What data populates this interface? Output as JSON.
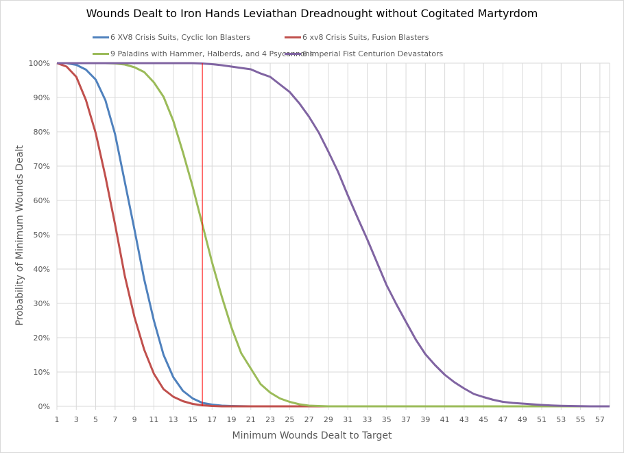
{
  "chart_data": {
    "type": "line",
    "title": "Wounds Dealt to Iron Hands Leviathan Dreadnought without Cogitated Martyrdom",
    "xlabel": "Minimum Wounds Dealt  to Target",
    "ylabel": "Probability of Minimum Wounds Dealt",
    "xlim": [
      1,
      58
    ],
    "ylim": [
      0,
      100
    ],
    "x_ticks": [
      1,
      3,
      5,
      7,
      9,
      11,
      13,
      15,
      17,
      19,
      21,
      23,
      25,
      27,
      29,
      31,
      33,
      35,
      37,
      39,
      41,
      43,
      45,
      47,
      49,
      51,
      53,
      55,
      57
    ],
    "y_ticks": [
      "0%",
      "10%",
      "20%",
      "30%",
      "40%",
      "50%",
      "60%",
      "70%",
      "80%",
      "90%",
      "100%"
    ],
    "grid": true,
    "legend_position": "top",
    "reference_line_x": 16,
    "reference_line_color": "#ff0000",
    "x": [
      1,
      2,
      3,
      4,
      5,
      6,
      7,
      8,
      9,
      10,
      11,
      12,
      13,
      14,
      15,
      16,
      17,
      18,
      19,
      20,
      21,
      22,
      23,
      24,
      25,
      26,
      27,
      28,
      29,
      30,
      31,
      32,
      33,
      34,
      35,
      36,
      37,
      38,
      39,
      40,
      41,
      42,
      43,
      44,
      45,
      46,
      47,
      48,
      49,
      50,
      51,
      52,
      53,
      54,
      55,
      56,
      57,
      58
    ],
    "series": [
      {
        "name": "6 XV8 Crisis Suits, Cyclic Ion Blasters",
        "color": "#4f81bd",
        "values": [
          100,
          100,
          99.5,
          98.1,
          95.2,
          89.2,
          79.3,
          65.4,
          51.5,
          37,
          25,
          15,
          8.5,
          4.5,
          2.3,
          1,
          0.5,
          0.2,
          0.1,
          0.05,
          0,
          0,
          0,
          0,
          0,
          0,
          0,
          0,
          0,
          0,
          0,
          0,
          0,
          0,
          0,
          0,
          0,
          0,
          0,
          0,
          0,
          0,
          0,
          0,
          0,
          0,
          0,
          0,
          0,
          0,
          0,
          0,
          0,
          0,
          0,
          0,
          0,
          0
        ]
      },
      {
        "name": "6 xv8 Crisis Suits, Fusion Blasters",
        "color": "#c0504d",
        "values": [
          100,
          99,
          96,
          89.2,
          79.6,
          67,
          53,
          38,
          26,
          16.5,
          9.5,
          5,
          2.8,
          1.5,
          0.7,
          0.3,
          0.1,
          0,
          0,
          0,
          0,
          0,
          0,
          0,
          0,
          0,
          0,
          0,
          0,
          0,
          0,
          0,
          0,
          0,
          0,
          0,
          0,
          0,
          0,
          0,
          0,
          0,
          0,
          0,
          0,
          0,
          0,
          0,
          0,
          0,
          0,
          0,
          0,
          0,
          0,
          0,
          0,
          0
        ]
      },
      {
        "name": "9 Paladins with Hammer, Halberds, and 4 Psycannons",
        "color": "#9bbb59",
        "values": [
          100,
          100,
          100,
          100,
          100,
          100,
          99.9,
          99.6,
          98.8,
          97.4,
          94.4,
          90.2,
          83.2,
          74,
          64,
          53,
          42,
          32,
          23,
          15.5,
          11,
          6.5,
          4,
          2.3,
          1.3,
          0.6,
          0.2,
          0.1,
          0,
          0,
          0,
          0,
          0,
          0,
          0,
          0,
          0,
          0,
          0,
          0,
          0,
          0,
          0,
          0,
          0,
          0,
          0,
          0,
          0,
          0,
          0,
          0,
          0,
          0,
          0,
          0,
          0,
          0
        ]
      },
      {
        "name": "6 Imperial Fist Centurion Devastators",
        "color": "#8064a2",
        "values": [
          100,
          100,
          100,
          100,
          100,
          100,
          100,
          100,
          100,
          100,
          100,
          100,
          100,
          100,
          100,
          99.9,
          99.7,
          99.4,
          99,
          98.6,
          98.2,
          97,
          96,
          93.8,
          91.6,
          88.3,
          84.4,
          79.8,
          74.2,
          68.3,
          61.5,
          55,
          48.7,
          42,
          35.3,
          29.8,
          24.6,
          19.5,
          15.2,
          12,
          9.2,
          7,
          5.2,
          3.6,
          2.7,
          1.9,
          1.3,
          1,
          0.8,
          0.6,
          0.4,
          0.25,
          0.15,
          0.1,
          0.05,
          0,
          0,
          0
        ]
      }
    ]
  }
}
